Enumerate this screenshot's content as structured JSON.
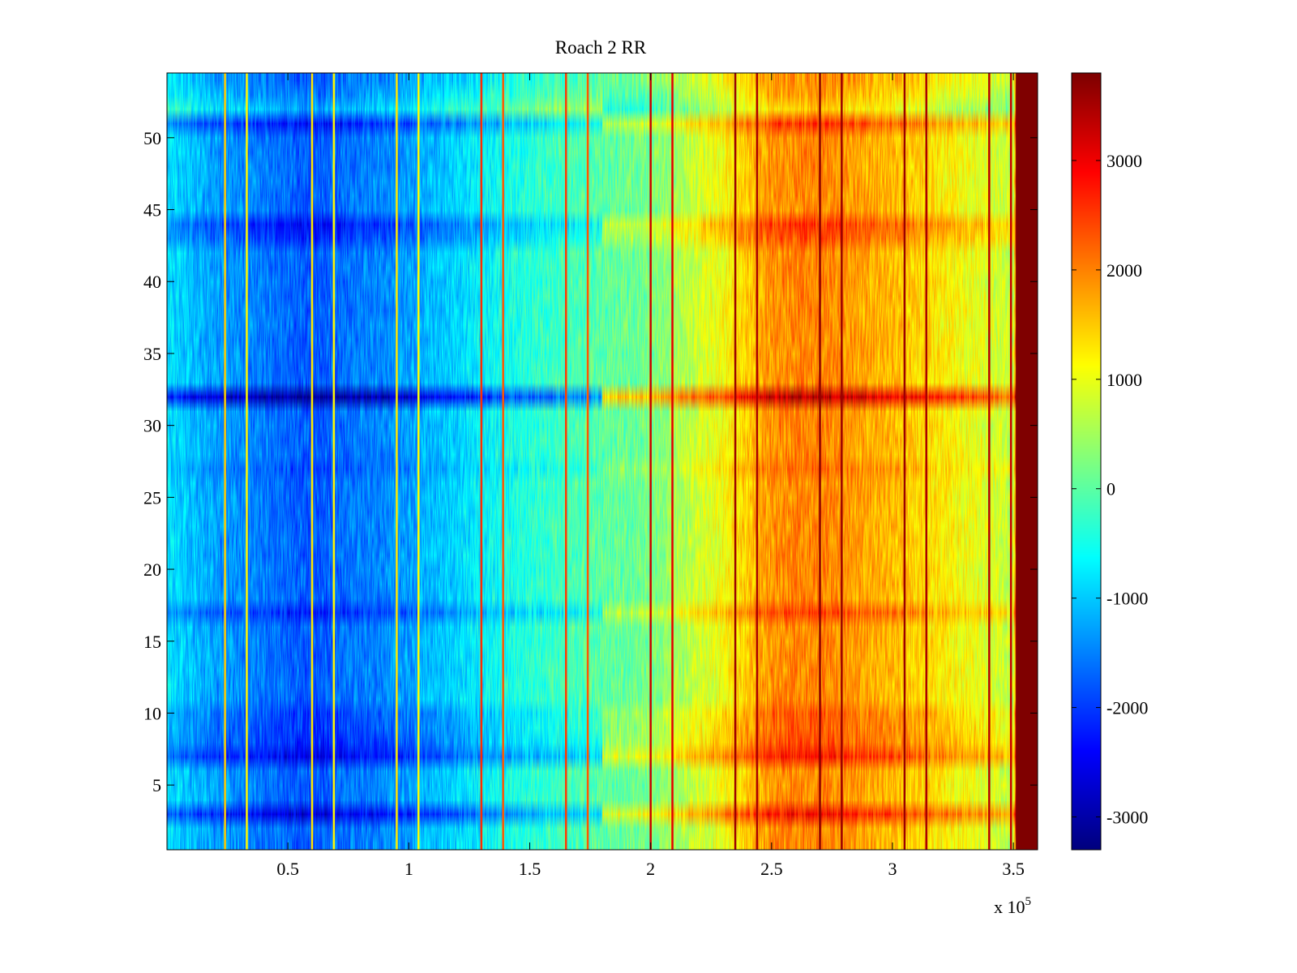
{
  "chart_data": {
    "type": "heatmap",
    "title": "Roach 2 RR",
    "xlabel": "",
    "ylabel": "",
    "x_multiplier_label": "x 10",
    "x_multiplier_exponent": "5",
    "xlim": [
      0,
      360000
    ],
    "ylim": [
      0.5,
      54.5
    ],
    "x_ticks": [
      {
        "value": 50000,
        "label": "0.5"
      },
      {
        "value": 100000,
        "label": "1"
      },
      {
        "value": 150000,
        "label": "1.5"
      },
      {
        "value": 200000,
        "label": "2"
      },
      {
        "value": 250000,
        "label": "2.5"
      },
      {
        "value": 300000,
        "label": "3"
      },
      {
        "value": 350000,
        "label": "3.5"
      }
    ],
    "y_ticks": [
      {
        "value": 5,
        "label": "5"
      },
      {
        "value": 10,
        "label": "10"
      },
      {
        "value": 15,
        "label": "15"
      },
      {
        "value": 20,
        "label": "20"
      },
      {
        "value": 25,
        "label": "25"
      },
      {
        "value": 30,
        "label": "30"
      },
      {
        "value": 35,
        "label": "35"
      },
      {
        "value": 40,
        "label": "40"
      },
      {
        "value": 45,
        "label": "45"
      },
      {
        "value": 50,
        "label": "50"
      }
    ],
    "rows": 54,
    "colormap": "jet",
    "clim": [
      -3300,
      3800
    ],
    "colorbar_ticks": [
      {
        "value": 3000,
        "label": "3000"
      },
      {
        "value": 2000,
        "label": "2000"
      },
      {
        "value": 1000,
        "label": "1000"
      },
      {
        "value": 0,
        "label": "0"
      },
      {
        "value": -1000,
        "label": "-1000"
      },
      {
        "value": -2000,
        "label": "-2000"
      },
      {
        "value": -3000,
        "label": "-3000"
      }
    ],
    "baseline_profile": [
      {
        "x": 0,
        "value": -800
      },
      {
        "x": 20000,
        "value": -1300
      },
      {
        "x": 60000,
        "value": -1800
      },
      {
        "x": 100000,
        "value": -1300
      },
      {
        "x": 130000,
        "value": -700
      },
      {
        "x": 160000,
        "value": -200
      },
      {
        "x": 200000,
        "value": 200
      },
      {
        "x": 230000,
        "value": 1100
      },
      {
        "x": 250000,
        "value": 1900
      },
      {
        "x": 270000,
        "value": 2000
      },
      {
        "x": 300000,
        "value": 1600
      },
      {
        "x": 340000,
        "value": 900
      },
      {
        "x": 350000,
        "value": 700
      },
      {
        "x": 352000,
        "value": 3800
      },
      {
        "x": 360000,
        "value": 3800
      }
    ],
    "row_offsets": [
      {
        "row": 3,
        "value": 900
      },
      {
        "row": 7,
        "value": 800
      },
      {
        "row": 8,
        "value": 400
      },
      {
        "row": 9,
        "value": 300
      },
      {
        "row": 10,
        "value": 300
      },
      {
        "row": 17,
        "value": 500
      },
      {
        "row": 27,
        "value": 200
      },
      {
        "row": 32,
        "value": 1400
      },
      {
        "row": 43,
        "value": 400
      },
      {
        "row": 44,
        "value": 600
      },
      {
        "row": 51,
        "value": 600
      },
      {
        "row": 52,
        "value": -500
      },
      {
        "row": 53,
        "value": -200
      }
    ],
    "vertical_lines": [
      {
        "x": 24000,
        "value": 1500
      },
      {
        "x": 33000,
        "value": 1200
      },
      {
        "x": 60000,
        "value": 1300
      },
      {
        "x": 69000,
        "value": 1200
      },
      {
        "x": 95000,
        "value": 1300
      },
      {
        "x": 104000,
        "value": 1100
      },
      {
        "x": 130000,
        "value": 2600
      },
      {
        "x": 139000,
        "value": 2300
      },
      {
        "x": 165000,
        "value": 2500
      },
      {
        "x": 174000,
        "value": 2300
      },
      {
        "x": 200000,
        "value": 3300
      },
      {
        "x": 209000,
        "value": 3100
      },
      {
        "x": 235000,
        "value": 3600
      },
      {
        "x": 244000,
        "value": 3500
      },
      {
        "x": 270000,
        "value": 3700
      },
      {
        "x": 279000,
        "value": 3600
      },
      {
        "x": 305000,
        "value": 3600
      },
      {
        "x": 314000,
        "value": 3500
      },
      {
        "x": 340000,
        "value": 3400
      },
      {
        "x": 349000,
        "value": 3300
      }
    ]
  }
}
